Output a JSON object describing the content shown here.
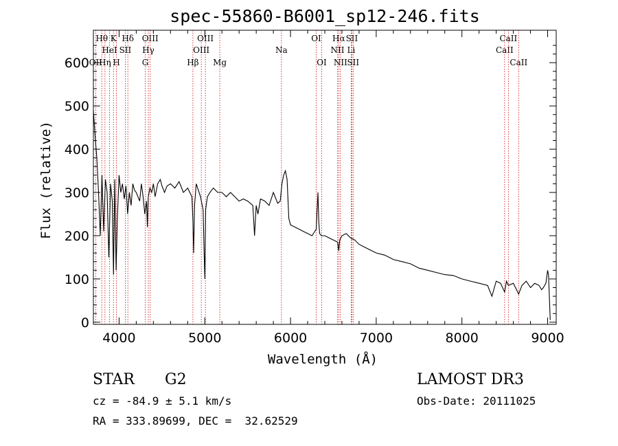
{
  "chart_data": {
    "type": "line",
    "title": "spec-55860-B6001_sp12-246.fits",
    "xlabel": "Wavelength (Å)",
    "ylabel": "Flux (relative)",
    "xlim": [
      3700,
      9100
    ],
    "ylim": [
      -5,
      675
    ],
    "x_ticks": [
      4000,
      5000,
      6000,
      7000,
      8000,
      9000
    ],
    "y_ticks": [
      0,
      100,
      200,
      300,
      400,
      500,
      600
    ],
    "grid": false,
    "series": [
      {
        "name": "flux",
        "x": [
          3700,
          3720,
          3740,
          3760,
          3780,
          3800,
          3820,
          3840,
          3860,
          3880,
          3900,
          3920,
          3935,
          3950,
          3965,
          3980,
          4000,
          4020,
          4040,
          4060,
          4080,
          4100,
          4120,
          4140,
          4160,
          4180,
          4200,
          4220,
          4240,
          4260,
          4280,
          4300,
          4320,
          4330,
          4340,
          4360,
          4380,
          4400,
          4420,
          4450,
          4480,
          4500,
          4530,
          4560,
          4600,
          4650,
          4700,
          4750,
          4800,
          4850,
          4860,
          4870,
          4880,
          4900,
          4950,
          4980,
          4995,
          5000,
          5010,
          5030,
          5060,
          5100,
          5150,
          5200,
          5250,
          5300,
          5350,
          5400,
          5450,
          5500,
          5560,
          5580,
          5600,
          5620,
          5650,
          5700,
          5750,
          5800,
          5850,
          5880,
          5900,
          5920,
          5940,
          5960,
          5980,
          6000,
          6050,
          6100,
          6150,
          6200,
          6250,
          6300,
          6320,
          6330,
          6340,
          6360,
          6400,
          6450,
          6500,
          6550,
          6563,
          6575,
          6600,
          6650,
          6700,
          6750,
          6800,
          6850,
          6900,
          6950,
          7000,
          7100,
          7200,
          7300,
          7400,
          7500,
          7600,
          7700,
          7800,
          7900,
          8000,
          8100,
          8200,
          8300,
          8350,
          8400,
          8450,
          8498,
          8520,
          8542,
          8600,
          8662,
          8700,
          8750,
          8800,
          8850,
          8900,
          8930,
          8950,
          8980,
          9000,
          9010,
          9020,
          9030
        ],
        "y": [
          490,
          430,
          380,
          300,
          200,
          340,
          210,
          330,
          300,
          150,
          320,
          280,
          110,
          330,
          120,
          240,
          340,
          300,
          320,
          285,
          315,
          250,
          300,
          270,
          320,
          305,
          300,
          290,
          280,
          320,
          290,
          250,
          280,
          220,
          290,
          310,
          300,
          320,
          290,
          320,
          330,
          315,
          300,
          315,
          320,
          310,
          325,
          300,
          310,
          290,
          240,
          160,
          270,
          320,
          290,
          260,
          140,
          100,
          260,
          290,
          300,
          310,
          300,
          300,
          290,
          300,
          290,
          280,
          285,
          280,
          270,
          200,
          270,
          250,
          285,
          280,
          270,
          300,
          275,
          280,
          320,
          340,
          350,
          330,
          240,
          225,
          220,
          215,
          210,
          205,
          200,
          215,
          300,
          230,
          205,
          200,
          200,
          195,
          190,
          185,
          165,
          190,
          200,
          205,
          195,
          190,
          180,
          175,
          170,
          165,
          160,
          155,
          145,
          140,
          135,
          125,
          120,
          115,
          110,
          108,
          100,
          95,
          90,
          85,
          60,
          95,
          90,
          70,
          95,
          85,
          90,
          65,
          85,
          95,
          80,
          90,
          85,
          75,
          80,
          90,
          120,
          110,
          60,
          5
        ]
      }
    ],
    "line_annotations": [
      {
        "label": "OII",
        "wavelength": 3727,
        "row": 2
      },
      {
        "label": "Hθ",
        "wavelength": 3798,
        "row": 0
      },
      {
        "label": "Hη",
        "wavelength": 3835,
        "row": 2
      },
      {
        "label": "HeI",
        "wavelength": 3889,
        "row": 1
      },
      {
        "label": "K",
        "wavelength": 3934,
        "row": 0
      },
      {
        "label": "H",
        "wavelength": 3969,
        "row": 2
      },
      {
        "label": "SII",
        "wavelength": 4072,
        "row": 1
      },
      {
        "label": "Hδ",
        "wavelength": 4102,
        "row": 0
      },
      {
        "label": "G",
        "wavelength": 4305,
        "row": 2
      },
      {
        "label": "Hγ",
        "wavelength": 4341,
        "row": 1
      },
      {
        "label": "OIII",
        "wavelength": 4363,
        "row": 0
      },
      {
        "label": "Hβ",
        "wavelength": 4861,
        "row": 2
      },
      {
        "label": "OIII",
        "wavelength": 4959,
        "row": 1
      },
      {
        "label": "OIII",
        "wavelength": 5007,
        "row": 0
      },
      {
        "label": "Mg",
        "wavelength": 5175,
        "row": 2
      },
      {
        "label": "Na",
        "wavelength": 5894,
        "row": 1
      },
      {
        "label": "OI",
        "wavelength": 6300,
        "row": 0
      },
      {
        "label": "OI",
        "wavelength": 6364,
        "row": 2
      },
      {
        "label": "NII",
        "wavelength": 6548,
        "row": 1
      },
      {
        "label": "Hα",
        "wavelength": 6563,
        "row": 0
      },
      {
        "label": "NII",
        "wavelength": 6583,
        "row": 2
      },
      {
        "label": "Li",
        "wavelength": 6708,
        "row": 1
      },
      {
        "label": "SII",
        "wavelength": 6716,
        "row": 0
      },
      {
        "label": "SII",
        "wavelength": 6731,
        "row": 2
      },
      {
        "label": "CaII",
        "wavelength": 8498,
        "row": 1
      },
      {
        "label": "CaII",
        "wavelength": 8542,
        "row": 0
      },
      {
        "label": "CaII",
        "wavelength": 8662,
        "row": 2
      }
    ]
  },
  "info": {
    "object_class": "STAR",
    "subclass": "G2",
    "survey": "LAMOST DR3",
    "cz": "cz = -84.9 ± 5.1 km/s",
    "obs_date": "Obs-Date: 20111025",
    "coords": "RA = 333.89699, DEC =  32.62529"
  },
  "colors": {
    "line": "#000000",
    "marker": "#cc0000"
  }
}
